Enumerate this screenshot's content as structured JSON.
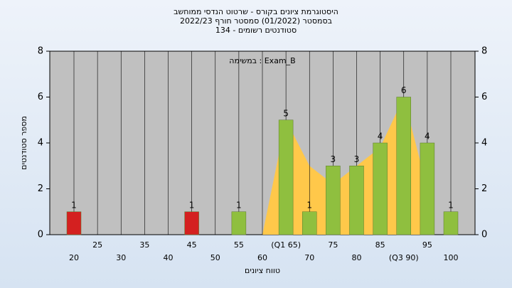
{
  "chart_data": {
    "type": "bar",
    "title": "היסטוגרמת ציונים בקורס - שרטוט הנדסי ממוחשב",
    "subtitle": "בסמסטר (01/2022) סמסטר חורף 2022/23",
    "subtitle2": "סטודנטים רשומים - 134",
    "annotation": "במשימה : Exam_B",
    "x_label": "טווח ציונים",
    "y_label": "מספר סטודנטים",
    "categories": [
      "20",
      "25",
      "30",
      "35",
      "40",
      "45",
      "50",
      "55",
      "60",
      "(Q1 65)",
      "70",
      "75",
      "80",
      "85",
      "(Q3 90)",
      "95",
      "100"
    ],
    "values": [
      1,
      0,
      0,
      0,
      0,
      1,
      0,
      1,
      0,
      5,
      1,
      3,
      3,
      4,
      6,
      4,
      1
    ],
    "colors": [
      "#d42020",
      "#8fbf3f",
      "#8fbf3f",
      "#8fbf3f",
      "#8fbf3f",
      "#d42020",
      "#8fbf3f",
      "#8fbf3f",
      "#8fbf3f",
      "#8fbf3f",
      "#8fbf3f",
      "#8fbf3f",
      "#8fbf3f",
      "#8fbf3f",
      "#8fbf3f",
      "#8fbf3f",
      "#8fbf3f"
    ],
    "area": {
      "color": "#ffc84a",
      "values": [
        null,
        null,
        null,
        null,
        null,
        null,
        null,
        null,
        0,
        5,
        3,
        2.2,
        3,
        3.8,
        6,
        2,
        null
      ]
    },
    "ylim": [
      0,
      8
    ],
    "yticks": [
      0,
      2,
      4,
      6,
      8
    ],
    "y2lim": [
      0,
      8
    ],
    "y2ticks": [
      0,
      2,
      4,
      6,
      8
    ],
    "grid": true
  }
}
